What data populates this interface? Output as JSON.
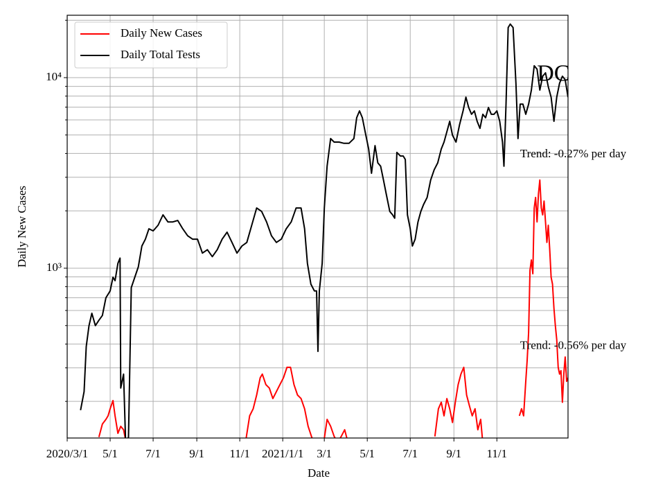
{
  "chart_data": {
    "type": "line",
    "ylabel": "Daily New Cases",
    "xlabel": "Date",
    "yscale": "log",
    "grid": true,
    "legend": "upper left",
    "xlim": [
      "2020-03-01",
      "2022-02-10"
    ],
    "xticks": [
      {
        "value": "2020-03-01",
        "label": "2020/3/1"
      },
      {
        "value": "2020-05-01",
        "label": "5/1"
      },
      {
        "value": "2020-07-01",
        "label": "7/1"
      },
      {
        "value": "2020-09-01",
        "label": "9/1"
      },
      {
        "value": "2020-11-01",
        "label": "11/1"
      },
      {
        "value": "2021-01-01",
        "label": "2021/1/1"
      },
      {
        "value": "2021-03-01",
        "label": "3/1"
      },
      {
        "value": "2021-05-01",
        "label": "5/1"
      },
      {
        "value": "2021-07-01",
        "label": "7/1"
      },
      {
        "value": "2021-09-01",
        "label": "9/1"
      },
      {
        "value": "2021-11-01",
        "label": "11/1"
      }
    ],
    "ylim": [
      128.5,
      21250
    ],
    "yticks": [
      {
        "value": 1000,
        "label": "10³"
      },
      {
        "value": 10000,
        "label": "10⁴"
      }
    ],
    "yminor_ticks": [
      200,
      300,
      400,
      500,
      600,
      700,
      800,
      900,
      2000,
      3000,
      4000,
      5000,
      6000,
      7000,
      8000,
      9000,
      20000
    ],
    "annotations": [
      {
        "text": "DC",
        "x": "2021-12-28",
        "y": 10300
      },
      {
        "text": "Trend: -0.27% per day",
        "x": "2021-12-04",
        "y": 3950
      },
      {
        "text": "Trend: -0.56% per day",
        "x": "2021-12-04",
        "y": 390
      }
    ],
    "series": [
      {
        "name": "Daily New Cases",
        "color": "#ff0000",
        "x": [
          "2020-04-15",
          "2020-04-20",
          "2020-04-25",
          "2020-04-28",
          "2020-05-01",
          "2020-05-05",
          "2020-05-08",
          "2020-05-12",
          "2020-05-16",
          "2020-05-20",
          "2020-05-24",
          "2020-08-01",
          "2020-11-10",
          "2020-11-15",
          "2020-11-20",
          "2020-11-25",
          "2020-11-30",
          "2020-12-03",
          "2020-12-08",
          "2020-12-13",
          "2020-12-18",
          "2020-12-23",
          "2020-12-28",
          "2021-01-02",
          "2021-01-07",
          "2021-01-12",
          "2021-01-17",
          "2021-01-22",
          "2021-01-27",
          "2021-02-01",
          "2021-02-06",
          "2021-02-11",
          "2021-02-16",
          "2021-02-21",
          "2021-03-01",
          "2021-03-05",
          "2021-03-10",
          "2021-03-15",
          "2021-03-20",
          "2021-03-25",
          "2021-03-30",
          "2021-04-05",
          "2021-06-01",
          "2021-08-05",
          "2021-08-10",
          "2021-08-14",
          "2021-08-18",
          "2021-08-22",
          "2021-08-26",
          "2021-08-30",
          "2021-09-03",
          "2021-09-07",
          "2021-09-11",
          "2021-09-15",
          "2021-09-19",
          "2021-09-23",
          "2021-09-27",
          "2021-10-01",
          "2021-10-05",
          "2021-10-09",
          "2021-10-13",
          "2021-11-15",
          "2021-12-03",
          "2021-12-06",
          "2021-12-09",
          "2021-12-12",
          "2021-12-14",
          "2021-12-16",
          "2021-12-18",
          "2021-12-20",
          "2021-12-22",
          "2021-12-24",
          "2021-12-26",
          "2021-12-28",
          "2021-12-30",
          "2022-01-01",
          "2022-01-03",
          "2022-01-05",
          "2022-01-07",
          "2022-01-09",
          "2022-01-11",
          "2022-01-13",
          "2022-01-15",
          "2022-01-17",
          "2022-01-19",
          "2022-01-21",
          "2022-01-23",
          "2022-01-25",
          "2022-01-27",
          "2022-01-29",
          "2022-01-31",
          "2022-02-02",
          "2022-02-04",
          "2022-02-06",
          "2022-02-08",
          "2022-02-10"
        ],
        "values": [
          130,
          152,
          161,
          168,
          183,
          202,
          168,
          136,
          148,
          142,
          120,
          null,
          128,
          168,
          183,
          216,
          266,
          278,
          245,
          235,
          207,
          225,
          245,
          266,
          302,
          302,
          245,
          216,
          207,
          183,
          148,
          130,
          120,
          null,
          128,
          161,
          148,
          131,
          122,
          131,
          142,
          116,
          null,
          131,
          183,
          198,
          168,
          207,
          183,
          155,
          198,
          245,
          278,
          302,
          216,
          190,
          168,
          183,
          142,
          161,
          110,
          null,
          168,
          183,
          168,
          255,
          328,
          459,
          975,
          1105,
          935,
          2070,
          2350,
          1750,
          2450,
          2900,
          2070,
          1905,
          2250,
          1750,
          1365,
          1680,
          1250,
          897,
          825,
          615,
          500,
          422,
          302,
          278,
          290,
          198,
          278,
          342,
          255,
          266
        ]
      },
      {
        "name": "Daily Total Tests",
        "color": "#000000",
        "x": [
          "2020-03-20",
          "2020-03-25",
          "2020-03-28",
          "2020-04-01",
          "2020-04-05",
          "2020-04-10",
          "2020-04-15",
          "2020-04-20",
          "2020-04-25",
          "2020-05-01",
          "2020-05-05",
          "2020-05-08",
          "2020-05-12",
          "2020-05-15",
          "2020-05-16",
          "2020-05-20",
          "2020-05-23",
          "2020-05-27",
          "2020-05-31",
          "2020-06-05",
          "2020-06-10",
          "2020-06-15",
          "2020-06-20",
          "2020-06-25",
          "2020-07-01",
          "2020-07-08",
          "2020-07-15",
          "2020-07-22",
          "2020-07-29",
          "2020-08-05",
          "2020-08-12",
          "2020-08-19",
          "2020-08-26",
          "2020-09-02",
          "2020-09-09",
          "2020-09-16",
          "2020-09-23",
          "2020-09-30",
          "2020-10-07",
          "2020-10-14",
          "2020-10-21",
          "2020-10-28",
          "2020-11-04",
          "2020-11-11",
          "2020-11-18",
          "2020-11-25",
          "2020-12-02",
          "2020-12-09",
          "2020-12-16",
          "2020-12-23",
          "2020-12-30",
          "2021-01-06",
          "2021-01-13",
          "2021-01-20",
          "2021-01-27",
          "2021-02-01",
          "2021-02-05",
          "2021-02-10",
          "2021-02-15",
          "2021-02-18",
          "2021-02-20",
          "2021-02-22",
          "2021-02-26",
          "2021-03-01",
          "2021-03-05",
          "2021-03-10",
          "2021-03-15",
          "2021-03-22",
          "2021-03-29",
          "2021-04-05",
          "2021-04-12",
          "2021-04-16",
          "2021-04-20",
          "2021-04-24",
          "2021-04-28",
          "2021-05-03",
          "2021-05-07",
          "2021-05-12",
          "2021-05-16",
          "2021-05-20",
          "2021-05-24",
          "2021-05-28",
          "2021-06-02",
          "2021-06-06",
          "2021-06-09",
          "2021-06-12",
          "2021-06-17",
          "2021-06-21",
          "2021-06-24",
          "2021-06-27",
          "2021-07-01",
          "2021-07-04",
          "2021-07-08",
          "2021-07-12",
          "2021-07-16",
          "2021-07-20",
          "2021-07-25",
          "2021-07-30",
          "2021-08-04",
          "2021-08-09",
          "2021-08-14",
          "2021-08-18",
          "2021-08-22",
          "2021-08-26",
          "2021-08-30",
          "2021-09-04",
          "2021-09-09",
          "2021-09-14",
          "2021-09-18",
          "2021-09-22",
          "2021-09-26",
          "2021-09-30",
          "2021-10-04",
          "2021-10-08",
          "2021-10-12",
          "2021-10-16",
          "2021-10-20",
          "2021-10-24",
          "2021-10-28",
          "2021-11-01",
          "2021-11-05",
          "2021-11-09",
          "2021-11-11",
          "2021-11-14",
          "2021-11-17",
          "2021-11-20",
          "2021-11-24",
          "2021-11-28",
          "2021-12-01",
          "2021-12-04",
          "2021-12-08",
          "2021-12-12",
          "2021-12-16",
          "2021-12-20",
          "2021-12-24",
          "2021-12-28",
          "2022-01-01",
          "2022-01-05",
          "2022-01-09",
          "2022-01-13",
          "2022-01-17",
          "2022-01-21",
          "2022-01-25",
          "2022-01-29",
          "2022-02-02",
          "2022-02-06",
          "2022-02-10"
        ],
        "values": [
          180,
          225,
          388,
          500,
          580,
          500,
          533,
          565,
          700,
          760,
          897,
          860,
          1060,
          1130,
          235,
          278,
          120,
          130,
          790,
          897,
          1017,
          1307,
          1420,
          1610,
          1570,
          1680,
          1905,
          1750,
          1750,
          1780,
          1610,
          1480,
          1420,
          1420,
          1200,
          1250,
          1150,
          1250,
          1420,
          1545,
          1365,
          1200,
          1307,
          1365,
          1680,
          2070,
          1985,
          1750,
          1480,
          1365,
          1420,
          1610,
          1750,
          2070,
          2070,
          1610,
          1060,
          825,
          760,
          760,
          366,
          760,
          1060,
          2070,
          3430,
          4790,
          4590,
          4590,
          4520,
          4520,
          4790,
          6160,
          6690,
          6160,
          5200,
          4220,
          3150,
          4400,
          3570,
          3430,
          2900,
          2450,
          1985,
          1905,
          1830,
          4050,
          3880,
          3880,
          3720,
          1905,
          1610,
          1307,
          1420,
          1750,
          1985,
          2160,
          2350,
          2900,
          3285,
          3570,
          4220,
          4590,
          5200,
          5900,
          4990,
          4590,
          5660,
          6690,
          7900,
          6970,
          6420,
          6690,
          5900,
          5420,
          6420,
          6160,
          6970,
          6420,
          6420,
          6690,
          5900,
          4590,
          3430,
          7260,
          18300,
          19100,
          18300,
          9350,
          4790,
          7260,
          7260,
          6420,
          7260,
          8600,
          11540,
          11080,
          8600,
          10170,
          10600,
          8960,
          7900,
          5900,
          7900,
          9350,
          10170,
          9750,
          7900
        ]
      }
    ]
  }
}
